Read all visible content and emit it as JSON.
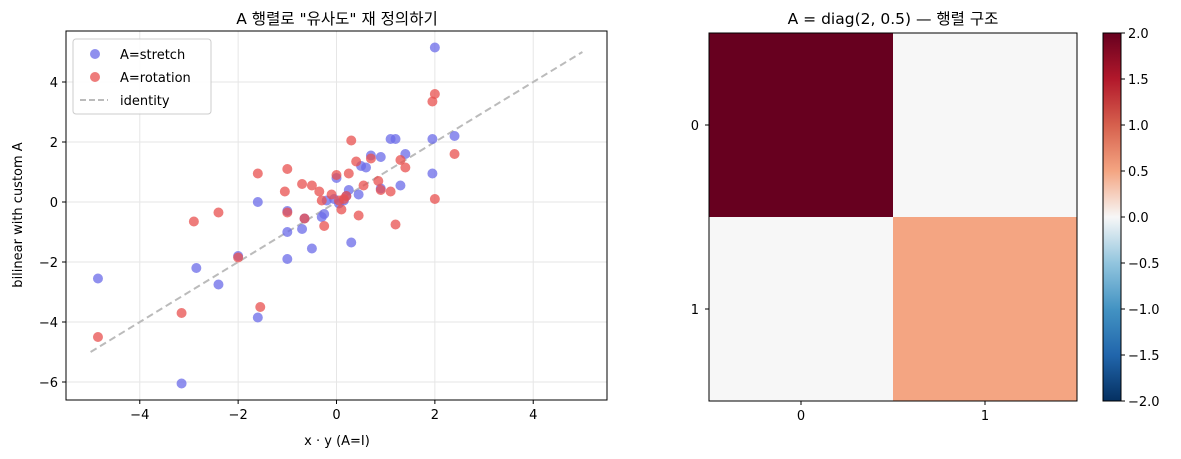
{
  "chart_data": [
    {
      "type": "scatter",
      "title": "A 행렬로 \"유사도\" 재 정의하기",
      "xlabel": "x · y (A=I)",
      "ylabel": "bilinear with custom A",
      "xlim": [
        -5.5,
        5.5
      ],
      "ylim": [
        -6.6,
        5.7
      ],
      "xticks": [
        "−4",
        "−2",
        "0",
        "2",
        "4"
      ],
      "yticks": [
        "−6",
        "−4",
        "−2",
        "0",
        "2",
        "4"
      ],
      "grid": true,
      "legend_position": "top-left",
      "series": [
        {
          "name": "A=stretch",
          "kind": "points",
          "color": "#6b6be8",
          "points": [
            [
              -4.85,
              -2.55
            ],
            [
              -3.15,
              -6.05
            ],
            [
              -2.85,
              -2.2
            ],
            [
              -2.4,
              -2.75
            ],
            [
              -2.0,
              -1.8
            ],
            [
              -1.6,
              0.0
            ],
            [
              -1.6,
              -3.85
            ],
            [
              -1.0,
              -1.0
            ],
            [
              -1.0,
              -1.9
            ],
            [
              -1.0,
              -0.3
            ],
            [
              -0.65,
              -0.55
            ],
            [
              -0.7,
              -0.9
            ],
            [
              -0.5,
              -1.55
            ],
            [
              -0.3,
              -0.5
            ],
            [
              -0.25,
              -0.4
            ],
            [
              -0.2,
              0.05
            ],
            [
              -0.05,
              0.1
            ],
            [
              0.0,
              0.8
            ],
            [
              0.05,
              -0.05
            ],
            [
              0.15,
              0.05
            ],
            [
              0.2,
              0.2
            ],
            [
              0.25,
              0.4
            ],
            [
              0.3,
              -1.35
            ],
            [
              0.45,
              0.25
            ],
            [
              0.5,
              1.2
            ],
            [
              0.6,
              1.15
            ],
            [
              0.7,
              1.55
            ],
            [
              0.9,
              1.5
            ],
            [
              0.9,
              0.45
            ],
            [
              1.1,
              2.1
            ],
            [
              1.2,
              2.1
            ],
            [
              1.3,
              0.55
            ],
            [
              1.4,
              1.6
            ],
            [
              1.95,
              0.95
            ],
            [
              1.95,
              2.1
            ],
            [
              2.0,
              5.15
            ],
            [
              2.4,
              2.2
            ]
          ]
        },
        {
          "name": "A=rotation",
          "kind": "points",
          "color": "#e8504f",
          "points": [
            [
              -4.85,
              -4.5
            ],
            [
              -3.15,
              -3.7
            ],
            [
              -2.9,
              -0.65
            ],
            [
              -2.4,
              -0.35
            ],
            [
              -2.0,
              -1.85
            ],
            [
              -1.6,
              0.95
            ],
            [
              -1.55,
              -3.5
            ],
            [
              -1.05,
              0.35
            ],
            [
              -1.0,
              -0.35
            ],
            [
              -1.0,
              1.1
            ],
            [
              -0.7,
              0.6
            ],
            [
              -0.65,
              -0.55
            ],
            [
              -0.5,
              0.55
            ],
            [
              -0.35,
              0.35
            ],
            [
              -0.3,
              0.05
            ],
            [
              -0.25,
              -0.8
            ],
            [
              -0.1,
              0.25
            ],
            [
              0.0,
              0.9
            ],
            [
              0.05,
              0.05
            ],
            [
              0.1,
              -0.25
            ],
            [
              0.15,
              0.1
            ],
            [
              0.2,
              0.2
            ],
            [
              0.25,
              0.95
            ],
            [
              0.3,
              2.05
            ],
            [
              0.4,
              1.35
            ],
            [
              0.45,
              -0.45
            ],
            [
              0.55,
              0.55
            ],
            [
              0.7,
              1.45
            ],
            [
              0.85,
              0.7
            ],
            [
              0.9,
              0.4
            ],
            [
              1.1,
              0.35
            ],
            [
              1.2,
              -0.75
            ],
            [
              1.3,
              1.4
            ],
            [
              1.4,
              1.15
            ],
            [
              1.95,
              3.35
            ],
            [
              2.0,
              3.6
            ],
            [
              2.0,
              0.1
            ],
            [
              2.4,
              1.6
            ]
          ]
        },
        {
          "name": "identity",
          "kind": "line",
          "color": "#bbbbbb",
          "points": [
            [
              -5,
              -5
            ],
            [
              5,
              5
            ]
          ]
        }
      ]
    },
    {
      "type": "heatmap",
      "title": "A = diag(2, 0.5) — 행렬 구조",
      "x_categories": [
        "0",
        "1"
      ],
      "y_categories": [
        "0",
        "1"
      ],
      "values": [
        [
          2,
          0
        ],
        [
          0,
          0.5
        ]
      ],
      "colormap": "RdBu_r",
      "vmin": -2,
      "vmax": 2,
      "colorbar_ticks": [
        "2.0",
        "1.5",
        "1.0",
        "0.5",
        "0.0",
        "−0.5",
        "−1.0",
        "−1.5",
        "−2.0"
      ]
    }
  ]
}
